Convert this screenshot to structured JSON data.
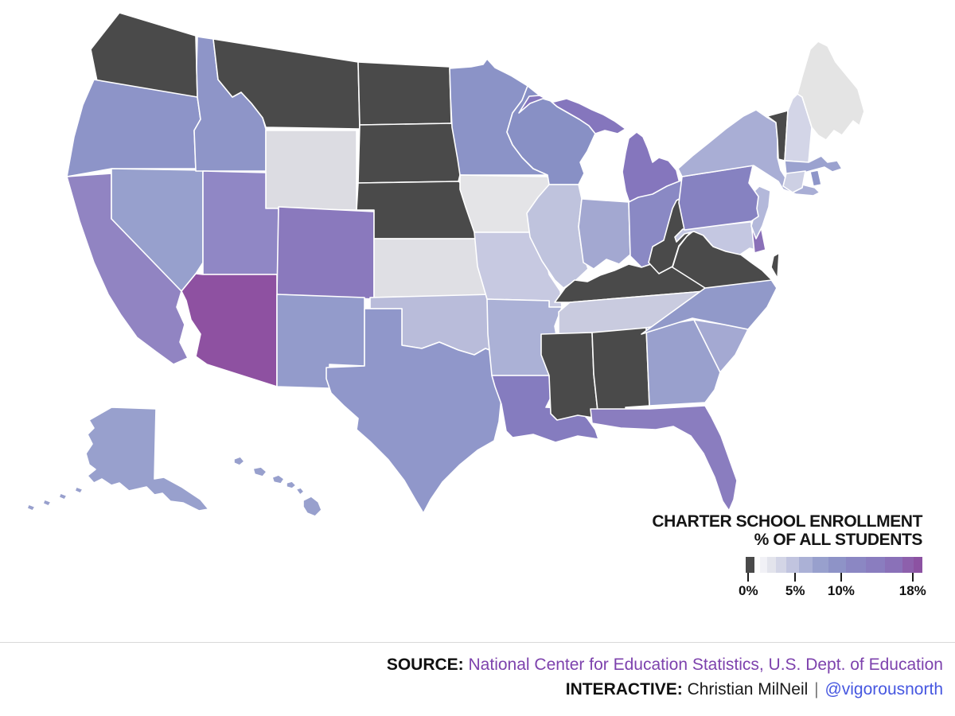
{
  "chart_data": {
    "type": "choropleth",
    "title": "CHARTER SCHOOL ENROLLMENT % OF ALL STUDENTS",
    "unit": "percent of all students enrolled in charter schools",
    "legend": {
      "title_line1": "CHARTER SCHOOL ENROLLMENT",
      "title_line2": "% OF ALL STUDENTS",
      "ticks": [
        {
          "label": "0%",
          "pos_pct": 1.5
        },
        {
          "label": "5%",
          "pos_pct": 28
        },
        {
          "label": "10%",
          "pos_pct": 54
        },
        {
          "label": "18%",
          "pos_pct": 94.5
        }
      ],
      "gradient_stops": [
        {
          "color": "#4a4a4a",
          "width": 5
        },
        {
          "color": "#fdfdfd",
          "width": 3
        },
        {
          "color": "#f1f1f6",
          "width": 4
        },
        {
          "color": "#e3e4ec",
          "width": 5
        },
        {
          "color": "#d3d5e6",
          "width": 6
        },
        {
          "color": "#c1c4df",
          "width": 7
        },
        {
          "color": "#abb1d6",
          "width": 8
        },
        {
          "color": "#98a0cd",
          "width": 9
        },
        {
          "color": "#8e93c7",
          "width": 10
        },
        {
          "color": "#8b87c3",
          "width": 11
        },
        {
          "color": "#8a7dbf",
          "width": 11
        },
        {
          "color": "#8a71b8",
          "width": 10
        },
        {
          "color": "#8d60ac",
          "width": 6
        },
        {
          "color": "#8c52a2",
          "width": 5
        }
      ],
      "zero_color_meaning": "0% / no charter enrollment (dark gray)"
    },
    "states": [
      {
        "abbr": "WA",
        "name": "Washington",
        "approx_pct": 0,
        "fill": "#4a4a4a"
      },
      {
        "abbr": "OR",
        "name": "Oregon",
        "approx_pct": 5.8,
        "fill": "#8d94c8"
      },
      {
        "abbr": "CA",
        "name": "California",
        "approx_pct": 8,
        "fill": "#9184c2"
      },
      {
        "abbr": "NV",
        "name": "Nevada",
        "approx_pct": 4.8,
        "fill": "#97a0cd"
      },
      {
        "abbr": "ID",
        "name": "Idaho",
        "approx_pct": 5.8,
        "fill": "#8e95c8"
      },
      {
        "abbr": "MT",
        "name": "Montana",
        "approx_pct": 0,
        "fill": "#4a4a4a"
      },
      {
        "abbr": "WY",
        "name": "Wyoming",
        "approx_pct": 0.3,
        "fill": "#dcdce2"
      },
      {
        "abbr": "UT",
        "name": "Utah",
        "approx_pct": 7.6,
        "fill": "#9087c5"
      },
      {
        "abbr": "CO",
        "name": "Colorado",
        "approx_pct": 10,
        "fill": "#8a79bd"
      },
      {
        "abbr": "AZ",
        "name": "Arizona",
        "approx_pct": 15,
        "fill": "#8e51a1"
      },
      {
        "abbr": "NM",
        "name": "New Mexico",
        "approx_pct": 5.2,
        "fill": "#939bcb"
      },
      {
        "abbr": "ND",
        "name": "North Dakota",
        "approx_pct": 0,
        "fill": "#4a4a4a"
      },
      {
        "abbr": "SD",
        "name": "South Dakota",
        "approx_pct": 0,
        "fill": "#4a4a4a"
      },
      {
        "abbr": "NE",
        "name": "Nebraska",
        "approx_pct": 0,
        "fill": "#4a4a4a"
      },
      {
        "abbr": "KS",
        "name": "Kansas",
        "approx_pct": 0.6,
        "fill": "#dfdfe4"
      },
      {
        "abbr": "OK",
        "name": "Oklahoma",
        "approx_pct": 2.4,
        "fill": "#b9bcda"
      },
      {
        "abbr": "TX",
        "name": "Texas",
        "approx_pct": 5.4,
        "fill": "#9097ca"
      },
      {
        "abbr": "MN",
        "name": "Minnesota",
        "approx_pct": 6,
        "fill": "#8b93c7"
      },
      {
        "abbr": "IA",
        "name": "Iowa",
        "approx_pct": 0.4,
        "fill": "#e4e4e7"
      },
      {
        "abbr": "MO",
        "name": "Missouri",
        "approx_pct": 2,
        "fill": "#c7c9e1"
      },
      {
        "abbr": "AR",
        "name": "Arkansas",
        "approx_pct": 3.4,
        "fill": "#abb1d6"
      },
      {
        "abbr": "LA",
        "name": "Louisiana",
        "approx_pct": 9.2,
        "fill": "#857cbf"
      },
      {
        "abbr": "WI",
        "name": "Wisconsin",
        "approx_pct": 6.4,
        "fill": "#8890c5"
      },
      {
        "abbr": "IL",
        "name": "Illinois",
        "approx_pct": 2.6,
        "fill": "#bfc3dd"
      },
      {
        "abbr": "MI",
        "name": "Michigan",
        "approx_pct": 10.4,
        "fill": "#8576bd"
      },
      {
        "abbr": "IN",
        "name": "Indiana",
        "approx_pct": 3.8,
        "fill": "#a3a8d1"
      },
      {
        "abbr": "OH",
        "name": "Ohio",
        "approx_pct": 6.8,
        "fill": "#8a89c4"
      },
      {
        "abbr": "KY",
        "name": "Kentucky",
        "approx_pct": 0,
        "fill": "#4a4a4a"
      },
      {
        "abbr": "TN",
        "name": "Tennessee",
        "approx_pct": 1.8,
        "fill": "#c9cbdf"
      },
      {
        "abbr": "MS",
        "name": "Mississippi",
        "approx_pct": 0,
        "fill": "#4a4a4a"
      },
      {
        "abbr": "AL",
        "name": "Alabama",
        "approx_pct": 0,
        "fill": "#4a4a4a"
      },
      {
        "abbr": "GA",
        "name": "Georgia",
        "approx_pct": 4.6,
        "fill": "#99a0cd"
      },
      {
        "abbr": "FL",
        "name": "Florida",
        "approx_pct": 8.8,
        "fill": "#8a7dbf"
      },
      {
        "abbr": "SC",
        "name": "South Carolina",
        "approx_pct": 3.8,
        "fill": "#a4a9d2"
      },
      {
        "abbr": "NC",
        "name": "North Carolina",
        "approx_pct": 5.4,
        "fill": "#9199c9"
      },
      {
        "abbr": "VA",
        "name": "Virginia",
        "approx_pct": 0,
        "fill": "#4a4a4a"
      },
      {
        "abbr": "WV",
        "name": "West Virginia",
        "approx_pct": 0,
        "fill": "#4a4a4a"
      },
      {
        "abbr": "MD",
        "name": "Maryland",
        "approx_pct": 2,
        "fill": "#c4c7e1"
      },
      {
        "abbr": "DE",
        "name": "Delaware",
        "approx_pct": 12,
        "fill": "#8a70b8"
      },
      {
        "abbr": "NJ",
        "name": "New Jersey",
        "approx_pct": 2.8,
        "fill": "#b3b8da"
      },
      {
        "abbr": "PA",
        "name": "Pennsylvania",
        "approx_pct": 8.4,
        "fill": "#8682c1"
      },
      {
        "abbr": "NY",
        "name": "New York",
        "approx_pct": 3.4,
        "fill": "#a9aed5"
      },
      {
        "abbr": "VT",
        "name": "Vermont",
        "approx_pct": 0,
        "fill": "#4a4a4a"
      },
      {
        "abbr": "NH",
        "name": "New Hampshire",
        "approx_pct": 1.4,
        "fill": "#d3d5e7"
      },
      {
        "abbr": "ME",
        "name": "Maine",
        "approx_pct": 0.3,
        "fill": "#e4e4e4"
      },
      {
        "abbr": "MA",
        "name": "Massachusetts",
        "approx_pct": 4.2,
        "fill": "#9ba2cf"
      },
      {
        "abbr": "RI",
        "name": "Rhode Island",
        "approx_pct": 6,
        "fill": "#8e96c9"
      },
      {
        "abbr": "CT",
        "name": "Connecticut",
        "approx_pct": 1.6,
        "fill": "#cdd0e4"
      },
      {
        "abbr": "AK",
        "name": "Alaska",
        "approx_pct": 4.8,
        "fill": "#98a0cd"
      },
      {
        "abbr": "HI",
        "name": "Hawaii",
        "approx_pct": 4.8,
        "fill": "#98a0cd"
      }
    ]
  },
  "map": {
    "stroke": "#ffffff",
    "dark_no_charter_color": "#4a4a4a",
    "max_purple_color": "#8c52a2"
  },
  "footer": {
    "source_label": "SOURCE:",
    "source_text": "National Center for Education Statistics, U.S. Dept. of Education",
    "source_color": "#7d42ad",
    "interactive_label": "INTERACTIVE:",
    "author": "Christian MilNeil",
    "separator": "|",
    "handle": "@vigorousnorth",
    "handle_color": "#4657e0"
  }
}
